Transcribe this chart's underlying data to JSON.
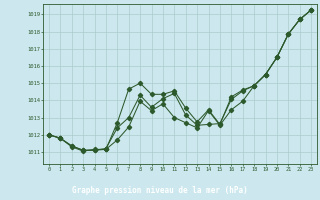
{
  "xlabel": "Graphe pression niveau de la mer (hPa)",
  "bg_color": "#cce8ee",
  "label_bg_color": "#2d6a2d",
  "grid_color": "#aacccc",
  "line_color": "#2d5a2d",
  "x_ticks": [
    0,
    1,
    2,
    3,
    4,
    5,
    6,
    7,
    8,
    9,
    10,
    11,
    12,
    13,
    14,
    15,
    16,
    17,
    18,
    19,
    20,
    21,
    22,
    23
  ],
  "y_ticks": [
    1011,
    1012,
    1013,
    1014,
    1015,
    1016,
    1017,
    1018,
    1019
  ],
  "ylim": [
    1010.3,
    1019.6
  ],
  "xlim": [
    -0.5,
    23.5
  ],
  "series1_x": [
    0,
    1,
    2,
    3,
    4,
    5,
    6,
    7,
    8,
    9,
    10,
    11,
    12,
    13,
    14,
    15,
    16,
    17,
    18,
    19,
    20,
    21,
    22,
    23
  ],
  "series1_y": [
    1012.0,
    1011.8,
    1011.35,
    1011.1,
    1011.1,
    1011.15,
    1012.7,
    1014.65,
    1015.0,
    1014.35,
    1014.35,
    1014.55,
    1013.55,
    1012.75,
    1013.45,
    1012.6,
    1014.2,
    1014.6,
    1014.85,
    1015.5,
    1016.5,
    1017.85,
    1018.7,
    1019.25
  ],
  "series2_x": [
    0,
    1,
    2,
    3,
    4,
    5,
    6,
    7,
    8,
    9,
    10,
    11,
    12,
    13,
    14,
    15,
    16,
    17,
    18,
    19,
    20,
    21,
    22,
    23
  ],
  "series2_y": [
    1012.0,
    1011.8,
    1011.35,
    1011.1,
    1011.1,
    1011.2,
    1012.4,
    1013.0,
    1014.3,
    1013.6,
    1014.1,
    1014.4,
    1013.15,
    1012.55,
    1012.6,
    1012.65,
    1014.05,
    1014.55,
    1014.85,
    1015.5,
    1016.5,
    1017.85,
    1018.7,
    1019.25
  ],
  "series3_x": [
    0,
    1,
    2,
    3,
    4,
    5,
    6,
    7,
    8,
    9,
    10,
    11,
    12,
    13,
    14,
    15,
    16,
    17,
    18,
    19,
    20,
    21,
    22,
    23
  ],
  "series3_y": [
    1012.0,
    1011.8,
    1011.3,
    1011.05,
    1011.15,
    1011.15,
    1011.7,
    1012.45,
    1013.95,
    1013.4,
    1013.8,
    1013.0,
    1012.7,
    1012.4,
    1013.4,
    1012.55,
    1013.45,
    1013.95,
    1014.85,
    1015.5,
    1016.5,
    1017.85,
    1018.7,
    1019.25
  ]
}
